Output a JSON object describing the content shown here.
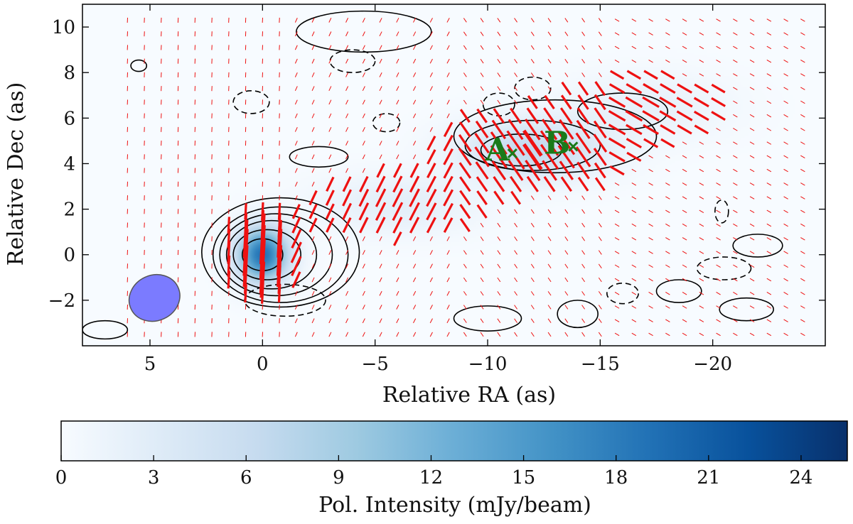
{
  "chart_data": {
    "type": "heatmap",
    "xlabel": "Relative RA (as)",
    "ylabel": "Relative Dec (as)",
    "xlim": [
      8,
      -25
    ],
    "ylim": [
      -4,
      11
    ],
    "xticks": [
      5,
      0,
      -5,
      -10,
      -15,
      -20
    ],
    "xtick_labels": [
      "5",
      "0",
      "−5",
      "−10",
      "−15",
      "−20"
    ],
    "yticks": [
      -2,
      0,
      2,
      4,
      6,
      8,
      10
    ],
    "ytick_labels": [
      "−2",
      "0",
      "2",
      "4",
      "6",
      "8",
      "10"
    ],
    "grid": false,
    "colormap": "Blues",
    "colorbar": {
      "label": "Pol. Intensity (mJy/beam)",
      "range": [
        0,
        25.5
      ],
      "ticks": [
        0,
        3,
        6,
        9,
        12,
        15,
        18,
        21,
        24
      ],
      "tick_labels": [
        "0",
        "3",
        "6",
        "9",
        "12",
        "15",
        "18",
        "21",
        "24"
      ],
      "orientation": "horizontal",
      "placement": "bottom"
    },
    "intensity_components": [
      {
        "x": 0,
        "y": 0,
        "peak": 19,
        "sx": 0.8,
        "sy": 0.85
      },
      {
        "x": -12,
        "y": 4.6,
        "peak": 6.5,
        "sx": 2.2,
        "sy": 0.9
      },
      {
        "x": -6,
        "y": 2.2,
        "peak": 2.5,
        "sx": 2.5,
        "sy": 0.9
      },
      {
        "x": -17,
        "y": 6.5,
        "peak": 2,
        "sx": 2.5,
        "sy": 1.0
      }
    ],
    "contours": [
      {
        "style": "solid",
        "cx": 0,
        "cy": 0,
        "rx": 0.9,
        "ry": 0.7
      },
      {
        "style": "solid",
        "cx": -0.2,
        "cy": 0,
        "rx": 1.5,
        "ry": 1.1
      },
      {
        "style": "solid",
        "cx": -0.4,
        "cy": 0,
        "rx": 2.0,
        "ry": 1.5
      },
      {
        "style": "solid",
        "cx": -0.6,
        "cy": 0,
        "rx": 2.5,
        "ry": 1.8
      },
      {
        "style": "solid",
        "cx": -0.8,
        "cy": 0,
        "rx": 3.0,
        "ry": 2.1
      },
      {
        "style": "solid",
        "cx": -0.8,
        "cy": 0.1,
        "rx": 3.5,
        "ry": 2.4
      },
      {
        "style": "solid",
        "cx": -11.5,
        "cy": 4.6,
        "rx": 1.8,
        "ry": 0.7
      },
      {
        "style": "solid",
        "cx": -12,
        "cy": 4.8,
        "rx": 3.0,
        "ry": 1.1
      },
      {
        "style": "solid",
        "cx": -13,
        "cy": 5.2,
        "rx": 4.5,
        "ry": 1.6
      },
      {
        "style": "solid",
        "cx": -16,
        "cy": 6.3,
        "rx": 2.0,
        "ry": 0.8
      },
      {
        "style": "solid",
        "cx": 5.5,
        "cy": 8.3,
        "rx": 0.35,
        "ry": 0.25
      },
      {
        "style": "solid",
        "cx": -2.5,
        "cy": 4.3,
        "rx": 1.3,
        "ry": 0.45
      },
      {
        "style": "solid",
        "cx": -10,
        "cy": -2.8,
        "rx": 1.5,
        "ry": 0.55
      },
      {
        "style": "solid",
        "cx": -14,
        "cy": -2.6,
        "rx": 0.9,
        "ry": 0.6
      },
      {
        "style": "solid",
        "cx": -18.5,
        "cy": -1.6,
        "rx": 1.0,
        "ry": 0.5
      },
      {
        "style": "solid",
        "cx": -22,
        "cy": 0.4,
        "rx": 1.1,
        "ry": 0.5
      },
      {
        "style": "solid",
        "cx": -21.5,
        "cy": -2.4,
        "rx": 1.2,
        "ry": 0.5
      },
      {
        "style": "solid",
        "cx": 7,
        "cy": -3.3,
        "rx": 1.0,
        "ry": 0.4
      },
      {
        "style": "solid",
        "cx": -4.5,
        "cy": 9.8,
        "rx": 3.0,
        "ry": 0.9
      },
      {
        "style": "dashed",
        "cx": 0.5,
        "cy": 6.7,
        "rx": 0.8,
        "ry": 0.5
      },
      {
        "style": "dashed",
        "cx": -12,
        "cy": 7.3,
        "rx": 0.8,
        "ry": 0.5
      },
      {
        "style": "dashed",
        "cx": -5.5,
        "cy": 5.8,
        "rx": 0.6,
        "ry": 0.4
      },
      {
        "style": "dashed",
        "cx": -16,
        "cy": -1.7,
        "rx": 0.7,
        "ry": 0.45
      },
      {
        "style": "dashed",
        "cx": -20.5,
        "cy": -0.6,
        "rx": 1.2,
        "ry": 0.5
      },
      {
        "style": "dashed",
        "cx": -20.4,
        "cy": 1.9,
        "rx": 0.3,
        "ry": 0.5
      },
      {
        "style": "dashed",
        "cx": -4,
        "cy": 8.5,
        "rx": 1.0,
        "ry": 0.5
      },
      {
        "style": "dashed",
        "cx": -10.5,
        "cy": 6.6,
        "rx": 0.7,
        "ry": 0.5
      },
      {
        "style": "dashed",
        "cx": -1,
        "cy": -2.0,
        "rx": 1.8,
        "ry": 0.7
      }
    ],
    "beam": {
      "x": 4.8,
      "y": -1.9,
      "rx": 1.15,
      "ry": 1.0,
      "angle_deg": 25,
      "color": "#7b7bff"
    },
    "markers": [
      {
        "label": "A",
        "x": -11.1,
        "y": 4.45
      },
      {
        "label": "B",
        "x": -13.8,
        "y": 4.75
      }
    ],
    "vector_color": "#ee1111",
    "marker_color": "#1a7a1a"
  }
}
